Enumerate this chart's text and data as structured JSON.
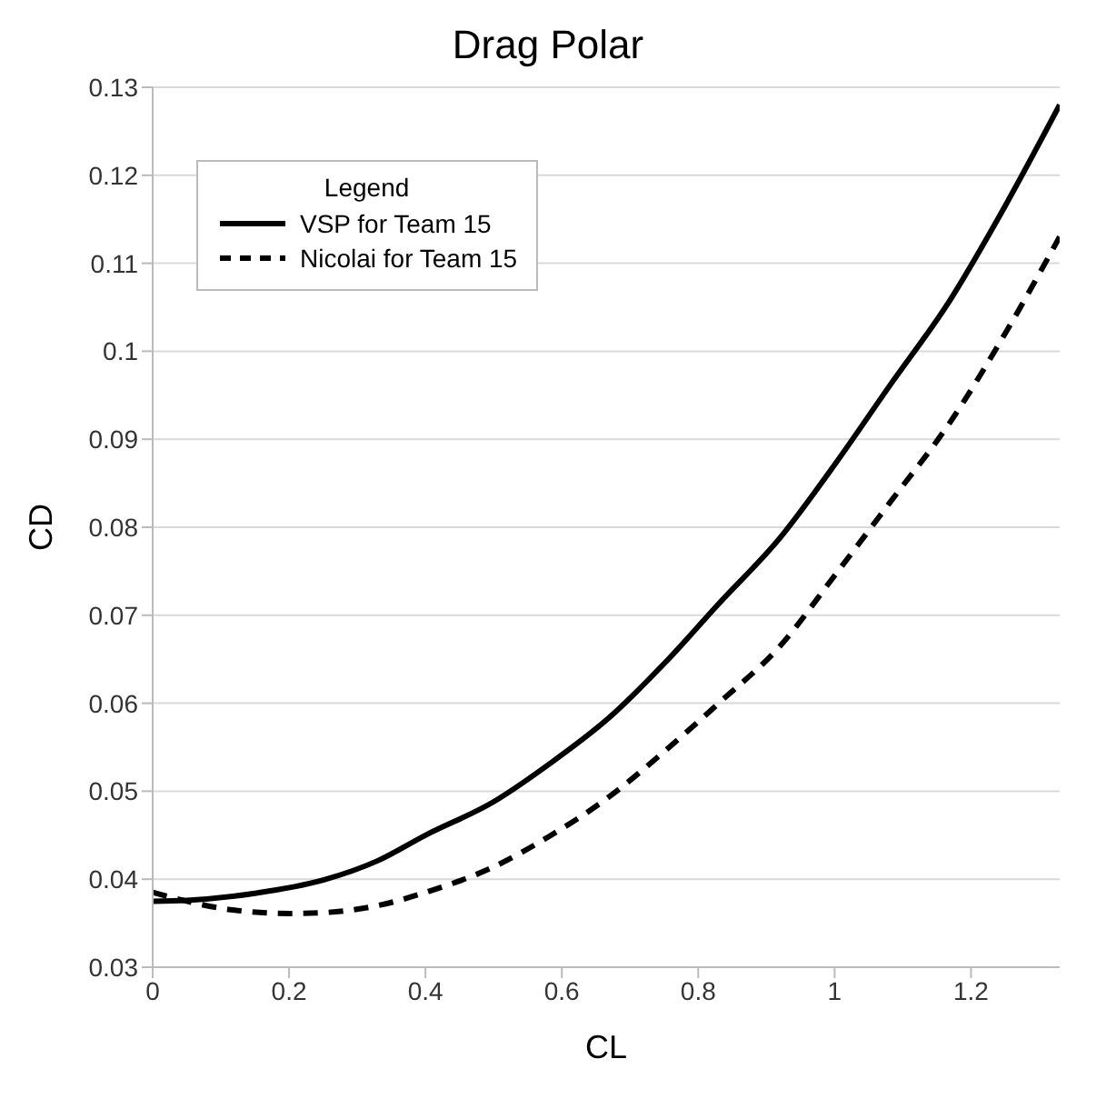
{
  "chart_data": {
    "type": "line",
    "title": "Drag Polar",
    "xlabel": "CL",
    "ylabel": "CD",
    "legend_title": "Legend",
    "legend": "top left",
    "grid": "y",
    "marker": "none",
    "xlim": [
      0,
      1.33
    ],
    "xticks": [
      0,
      {
        "value": 0.2,
        "label": "0.2"
      },
      {
        "value": 0.4,
        "label": "0.4"
      },
      {
        "value": 0.6,
        "label": "0.6"
      },
      {
        "value": 0.8,
        "label": "0.8"
      },
      1,
      {
        "value": 1.2,
        "label": "1.2"
      }
    ],
    "ylim": [
      0.03,
      0.13
    ],
    "yticks": [
      0.03,
      0.04,
      0.05,
      0.06,
      0.07,
      0.08,
      0.09,
      0.1,
      0.11,
      0.12,
      0.13
    ],
    "series": [
      {
        "name": "VSP for Team 15",
        "color": "#000000",
        "line_style": "solid",
        "x": [
          0,
          0.05,
          0.15,
          0.25,
          0.33,
          0.4,
          0.5,
          0.58,
          0.67,
          0.75,
          0.83,
          0.92,
          1.0,
          1.08,
          1.17,
          1.25,
          1.33
        ],
        "values": [
          0.0375,
          0.0376,
          0.0384,
          0.0399,
          0.0421,
          0.045,
          0.0488,
          0.053,
          0.0584,
          0.0645,
          0.0713,
          0.0788,
          0.0871,
          0.096,
          0.1059,
          0.1165,
          0.128
        ]
      },
      {
        "name": "Nicolai for Team 15",
        "color": "#000000",
        "line_style": "dashed",
        "x": [
          0,
          0.05,
          0.1,
          0.2,
          0.25,
          0.33,
          0.4,
          0.5,
          0.58,
          0.67,
          0.75,
          0.83,
          0.92,
          1.0,
          1.08,
          1.17,
          1.25,
          1.33
        ],
        "values": [
          0.0385,
          0.0375,
          0.0367,
          0.0361,
          0.0362,
          0.037,
          0.0385,
          0.0414,
          0.0448,
          0.0494,
          0.0545,
          0.06,
          0.0665,
          0.0745,
          0.0827,
          0.092,
          0.102,
          0.113
        ]
      }
    ]
  }
}
